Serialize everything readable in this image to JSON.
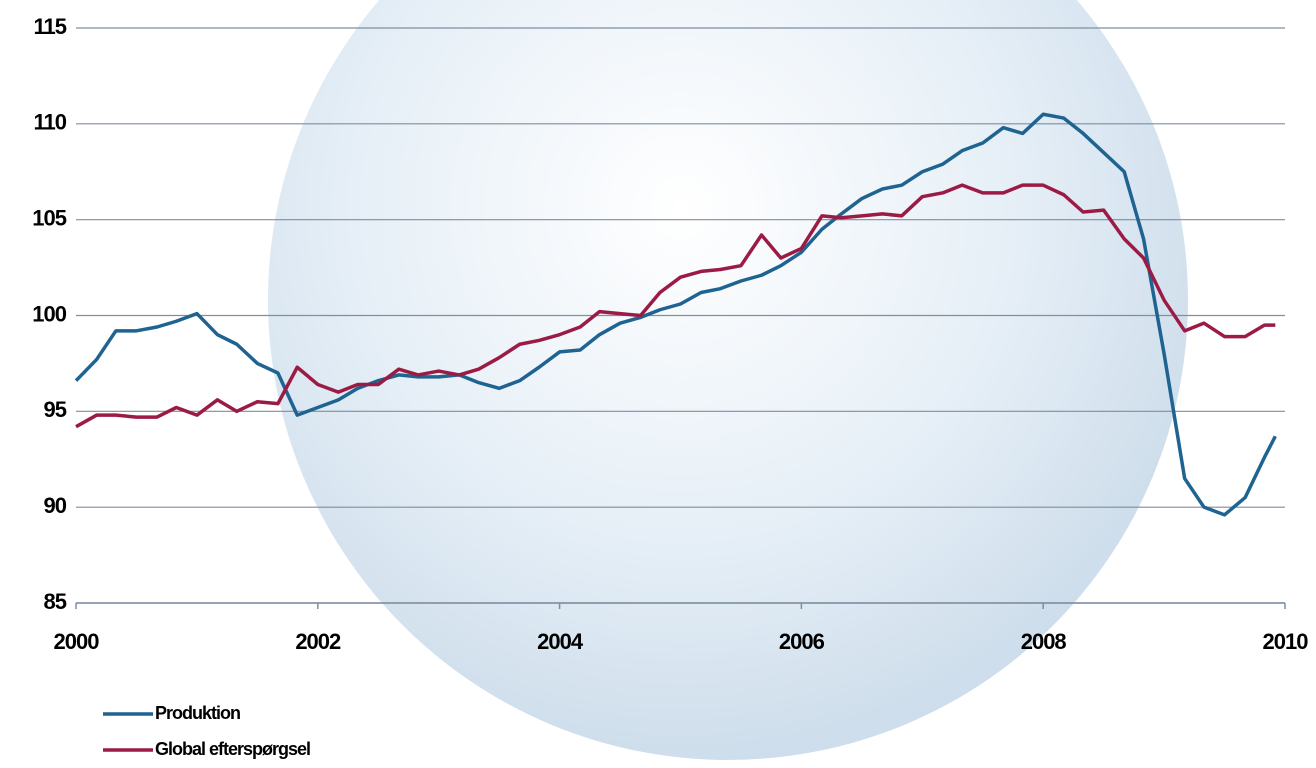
{
  "chart_data": {
    "type": "line",
    "x": [
      2000,
      2000.17,
      2000.33,
      2000.5,
      2000.67,
      2000.83,
      2001,
      2001.17,
      2001.33,
      2001.5,
      2001.67,
      2001.83,
      2002,
      2002.17,
      2002.33,
      2002.5,
      2002.67,
      2002.83,
      2003,
      2003.17,
      2003.33,
      2003.5,
      2003.67,
      2003.83,
      2004,
      2004.17,
      2004.33,
      2004.5,
      2004.67,
      2004.83,
      2005,
      2005.17,
      2005.33,
      2005.5,
      2005.67,
      2005.83,
      2006,
      2006.17,
      2006.33,
      2006.5,
      2006.67,
      2006.83,
      2007,
      2007.17,
      2007.33,
      2007.5,
      2007.67,
      2007.83,
      2008,
      2008.17,
      2008.33,
      2008.5,
      2008.67,
      2008.83,
      2009,
      2009.17,
      2009.33,
      2009.5,
      2009.67,
      2009.83,
      2009.92
    ],
    "series": [
      {
        "name": "Produktion",
        "color": "#1f6391",
        "values": [
          96.6,
          97.7,
          99.2,
          99.2,
          99.4,
          99.7,
          100.1,
          99.0,
          98.5,
          97.5,
          97.0,
          94.8,
          95.2,
          95.6,
          96.2,
          96.6,
          96.9,
          96.8,
          96.8,
          96.9,
          96.5,
          96.2,
          96.6,
          97.3,
          98.1,
          98.2,
          99.0,
          99.6,
          99.9,
          100.3,
          100.6,
          101.2,
          101.4,
          101.8,
          102.1,
          102.6,
          103.3,
          104.5,
          105.3,
          106.1,
          106.6,
          106.8,
          107.5,
          107.9,
          108.6,
          109.0,
          109.8,
          109.5,
          110.5,
          110.3,
          109.5,
          108.5,
          107.5,
          104.0,
          98.0,
          91.5,
          90.0,
          89.6,
          90.5,
          92.6,
          93.7
        ]
      },
      {
        "name": "Global efterspørgsel",
        "color": "#9b1b45",
        "values": [
          94.2,
          94.8,
          94.8,
          94.7,
          94.7,
          95.2,
          94.8,
          95.6,
          95.0,
          95.5,
          95.4,
          97.3,
          96.4,
          96.0,
          96.4,
          96.4,
          97.2,
          96.9,
          97.1,
          96.9,
          97.2,
          97.8,
          98.5,
          98.7,
          99.0,
          99.4,
          100.2,
          100.1,
          100.0,
          101.2,
          102.0,
          102.3,
          102.4,
          102.6,
          104.2,
          103.0,
          103.5,
          105.2,
          105.1,
          105.2,
          105.3,
          105.2,
          106.2,
          106.4,
          106.8,
          106.4,
          106.4,
          106.8,
          106.8,
          106.3,
          105.4,
          105.5,
          104.0,
          103.0,
          100.8,
          99.2,
          99.6,
          98.9,
          98.9,
          99.5,
          99.5
        ]
      }
    ],
    "xlim": [
      2000,
      2010
    ],
    "xticks": [
      2000,
      2002,
      2004,
      2006,
      2008,
      2010
    ],
    "ylim": [
      85,
      115
    ],
    "yticks": [
      85,
      90,
      95,
      100,
      105,
      110,
      115
    ],
    "grid": true,
    "legend": "bottom-left"
  }
}
